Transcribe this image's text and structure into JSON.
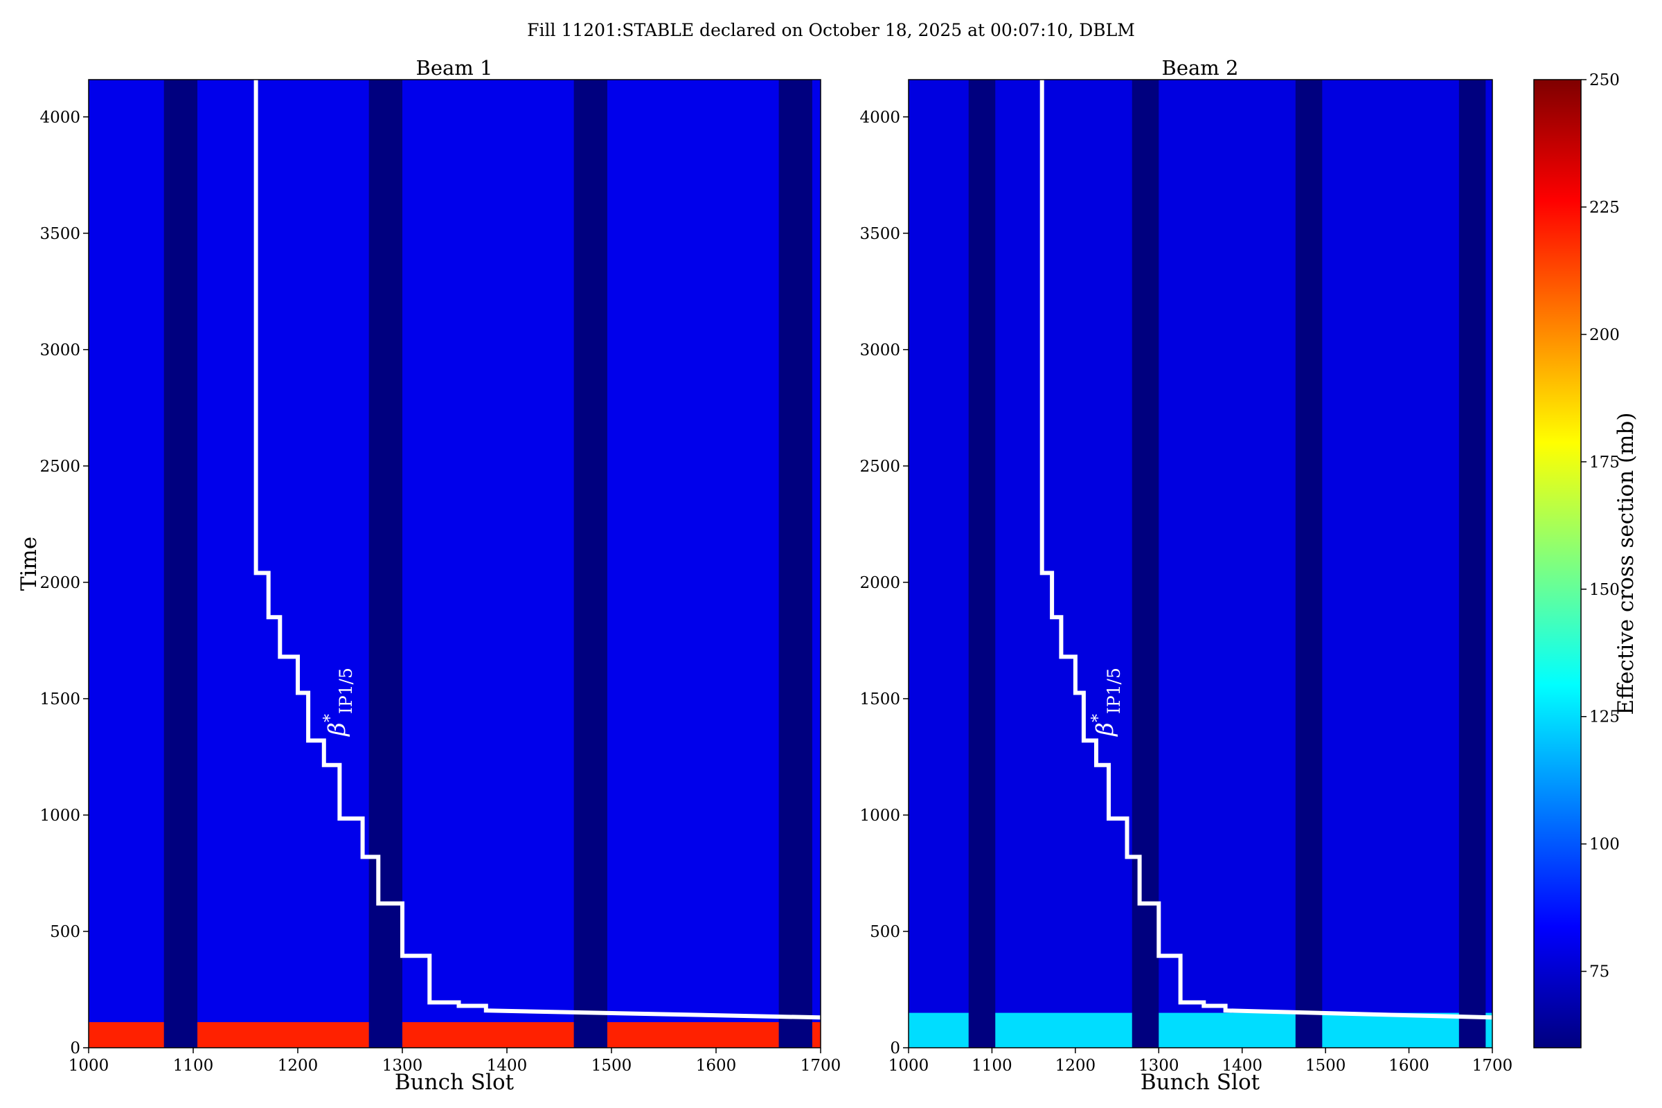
{
  "figure": {
    "suptitle": "Fill 11201:STABLE declared on October 18, 2025 at 00:07:10, DBLM"
  },
  "colorbar": {
    "label": "Effective cross section (mb)",
    "range": [
      60,
      250
    ],
    "ticks": [
      "75",
      "100",
      "125",
      "150",
      "175",
      "200",
      "225",
      "250"
    ],
    "colormap": [
      "#00007f",
      "#0000ff",
      "#007fff",
      "#00ffff",
      "#7fff7f",
      "#ffff00",
      "#ff7f00",
      "#ff0000",
      "#7f0000"
    ]
  },
  "chart_data": [
    {
      "type": "heatmap",
      "title": "Beam 1",
      "xlabel": "Bunch Slot",
      "ylabel": "Time",
      "xlim": [
        1000,
        1700
      ],
      "ylim": [
        0,
        4160
      ],
      "xticks": [
        "1000",
        "1100",
        "1200",
        "1300",
        "1400",
        "1500",
        "1600",
        "1700"
      ],
      "yticks": [
        "0",
        "500",
        "1000",
        "1500",
        "2000",
        "2500",
        "3000",
        "3500",
        "4000"
      ],
      "empty_slot_ranges": [
        [
          1072,
          1104
        ],
        [
          1268,
          1300
        ],
        [
          1464,
          1496
        ],
        [
          1660,
          1692
        ]
      ],
      "base_value_mb": 80,
      "low_time_high_band": [
        0,
        110
      ],
      "low_time_band_value_mb": 220,
      "annotation": "β*IP1/5",
      "beta_star_curve": {
        "x": [
          1160,
          1160,
          1172,
          1172,
          1183,
          1183,
          1200,
          1200,
          1210,
          1210,
          1225,
          1225,
          1240,
          1240,
          1262,
          1262,
          1277,
          1277,
          1300,
          1300,
          1326,
          1326,
          1354,
          1354,
          1380,
          1380,
          1700
        ],
        "y": [
          4160,
          2040,
          2040,
          1850,
          1850,
          1680,
          1680,
          1525,
          1525,
          1320,
          1320,
          1215,
          1215,
          985,
          985,
          820,
          820,
          620,
          620,
          395,
          395,
          195,
          195,
          180,
          180,
          160,
          130
        ]
      }
    },
    {
      "type": "heatmap",
      "title": "Beam 2",
      "xlabel": "Bunch Slot",
      "ylabel": "",
      "xlim": [
        1000,
        1700
      ],
      "ylim": [
        0,
        4160
      ],
      "xticks": [
        "1000",
        "1100",
        "1200",
        "1300",
        "1400",
        "1500",
        "1600",
        "1700"
      ],
      "yticks": [
        "0",
        "500",
        "1000",
        "1500",
        "2000",
        "2500",
        "3000",
        "3500",
        "4000"
      ],
      "empty_slot_ranges": [
        [
          1072,
          1104
        ],
        [
          1268,
          1300
        ],
        [
          1464,
          1496
        ],
        [
          1660,
          1692
        ]
      ],
      "base_value_mb": 78,
      "low_time_high_band": [
        0,
        150
      ],
      "low_time_band_value_mb": 125,
      "annotation": "β*IP1/5",
      "beta_star_curve": {
        "x": [
          1160,
          1160,
          1172,
          1172,
          1183,
          1183,
          1200,
          1200,
          1210,
          1210,
          1225,
          1225,
          1240,
          1240,
          1262,
          1262,
          1277,
          1277,
          1300,
          1300,
          1326,
          1326,
          1354,
          1354,
          1380,
          1380,
          1700
        ],
        "y": [
          4160,
          2040,
          2040,
          1850,
          1850,
          1680,
          1680,
          1525,
          1525,
          1320,
          1320,
          1215,
          1215,
          985,
          985,
          820,
          820,
          620,
          620,
          395,
          395,
          195,
          195,
          180,
          180,
          160,
          130
        ]
      }
    }
  ]
}
